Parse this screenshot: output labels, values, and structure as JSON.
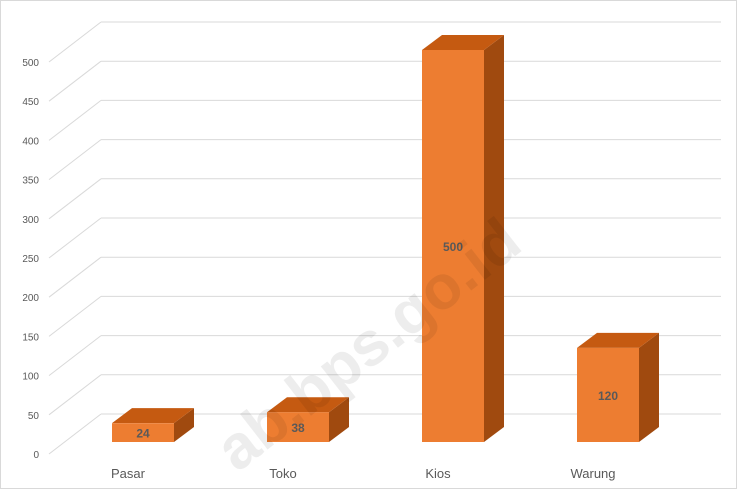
{
  "chart_data": {
    "type": "bar",
    "style": "3d-column",
    "categories": [
      "Pasar",
      "Toko",
      "Kios",
      "Warung"
    ],
    "values": [
      24,
      38,
      500,
      120
    ],
    "data_labels": [
      "24",
      "38",
      "500",
      "120"
    ],
    "ylim": [
      0,
      500
    ],
    "yticks": [
      "0",
      "50",
      "100",
      "150",
      "200",
      "250",
      "300",
      "350",
      "400",
      "450",
      "500"
    ],
    "title": "",
    "xlabel": "",
    "ylabel": "",
    "grid": true,
    "legend": "none",
    "colors": {
      "front": "#ED7D31",
      "top": "#C55A11",
      "side": "#A04A0F",
      "grid": "#d9d9d9",
      "text": "#595959"
    }
  },
  "watermark": "ab.bps.go.id"
}
